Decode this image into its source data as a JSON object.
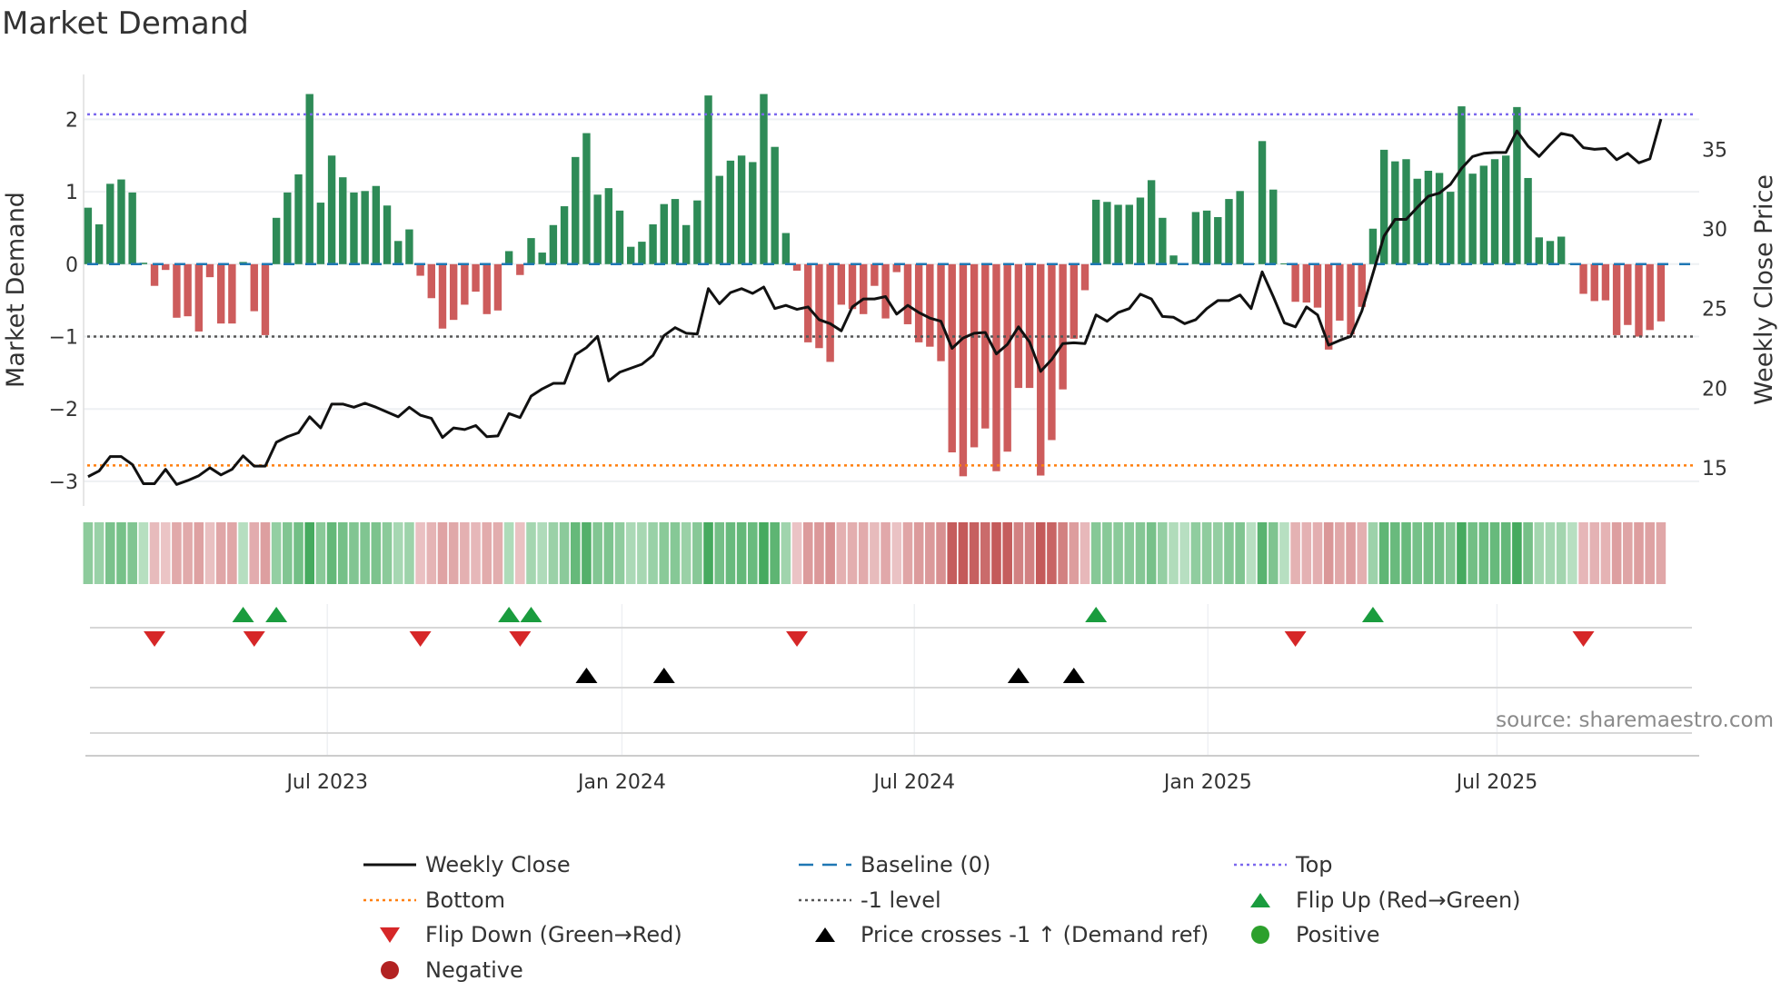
{
  "title": "Market Demand",
  "source": "source: sharemaestro.com",
  "chart_data": {
    "type": "bar",
    "title": "Market Demand",
    "ylabel": "Market Demand",
    "y2label": "Weekly Close Price",
    "ylim": [
      -3.34,
      2.62
    ],
    "y2lim": [
      12.6,
      39.7
    ],
    "y_ticks": [
      "2",
      "1",
      "0",
      "−1",
      "−2",
      "−3"
    ],
    "y_tick_values": [
      2,
      1,
      0,
      -1,
      -2,
      -3
    ],
    "y2_ticks": [
      "35",
      "30",
      "25",
      "20",
      "15"
    ],
    "y2_tick_values": [
      35,
      30,
      25,
      20,
      15
    ],
    "x_unit": "week index",
    "x_ticks": [
      {
        "label": "Jul 2023",
        "week": 21.6
      },
      {
        "label": "Jan 2024",
        "week": 48.2
      },
      {
        "label": "Jul 2024",
        "week": 74.6
      },
      {
        "label": "Jan 2025",
        "week": 101.1
      },
      {
        "label": "Jul 2025",
        "week": 127.2
      }
    ],
    "levels": {
      "top": 2.07,
      "bottom": -2.78,
      "baseline": 0,
      "minus_one": -1
    },
    "demand": [
      0.78,
      0.55,
      1.11,
      1.17,
      0.99,
      0.02,
      -0.3,
      -0.08,
      -0.74,
      -0.72,
      -0.93,
      -0.18,
      -0.82,
      -0.82,
      0.03,
      -0.65,
      -0.98,
      0.64,
      0.99,
      1.24,
      2.35,
      0.85,
      1.5,
      1.2,
      0.99,
      1.01,
      1.08,
      0.81,
      0.32,
      0.48,
      -0.16,
      -0.47,
      -0.89,
      -0.77,
      -0.56,
      -0.38,
      -0.69,
      -0.64,
      0.18,
      -0.15,
      0.36,
      0.16,
      0.54,
      0.8,
      1.48,
      1.81,
      0.96,
      1.05,
      0.74,
      0.24,
      0.31,
      0.55,
      0.83,
      0.9,
      0.54,
      0.88,
      2.33,
      1.22,
      1.43,
      1.5,
      1.41,
      2.35,
      1.62,
      0.43,
      -0.09,
      -1.08,
      -1.16,
      -1.35,
      -0.56,
      -0.62,
      -0.69,
      -0.3,
      -0.75,
      -0.11,
      -0.83,
      -1.08,
      -1.14,
      -1.34,
      -2.6,
      -2.93,
      -2.53,
      -2.27,
      -2.86,
      -2.59,
      -1.71,
      -1.71,
      -2.92,
      -2.43,
      -1.73,
      -1.03,
      -0.36,
      0.89,
      0.86,
      0.82,
      0.82,
      0.92,
      1.16,
      0.64,
      0.12,
      0.01,
      0.72,
      0.74,
      0.65,
      0.9,
      1.01,
      0.01,
      1.7,
      1.03,
      0.01,
      -0.52,
      -0.53,
      -0.6,
      -1.18,
      -0.78,
      -0.97,
      -0.59,
      0.49,
      1.58,
      1.42,
      1.45,
      1.18,
      1.29,
      1.26,
      1.0,
      2.18,
      1.25,
      1.36,
      1.45,
      1.5,
      2.17,
      1.19,
      0.37,
      0.32,
      0.38,
      0.01,
      -0.41,
      -0.51,
      -0.5,
      -0.98,
      -0.84,
      -1.0,
      -0.91,
      -0.79
    ],
    "weekly_close": [
      14.44,
      14.8,
      15.7,
      15.7,
      15.2,
      14.0,
      14.0,
      14.9,
      13.95,
      14.2,
      14.5,
      15.0,
      14.55,
      14.9,
      15.75,
      15.1,
      15.1,
      16.6,
      16.95,
      17.2,
      18.2,
      17.5,
      19.0,
      19.0,
      18.8,
      19.05,
      18.8,
      18.5,
      18.2,
      18.8,
      18.3,
      18.1,
      16.9,
      17.5,
      17.4,
      17.65,
      16.95,
      17.0,
      18.4,
      18.15,
      19.5,
      19.95,
      20.3,
      20.3,
      22.1,
      22.55,
      23.25,
      20.45,
      21.0,
      21.25,
      21.5,
      22.05,
      23.3,
      23.8,
      23.45,
      23.4,
      26.25,
      25.3,
      26.0,
      26.25,
      25.95,
      26.35,
      25.0,
      25.2,
      24.95,
      25.1,
      24.3,
      24.05,
      23.6,
      25.1,
      25.6,
      25.6,
      25.75,
      24.65,
      25.2,
      24.75,
      24.4,
      24.2,
      22.5,
      23.15,
      23.45,
      23.5,
      22.15,
      22.75,
      23.85,
      22.9,
      21.05,
      21.8,
      22.8,
      22.85,
      22.8,
      24.6,
      24.2,
      24.75,
      25.0,
      25.9,
      25.6,
      24.5,
      24.45,
      24.05,
      24.3,
      25.0,
      25.5,
      25.5,
      25.85,
      25.0,
      27.3,
      25.75,
      24.1,
      23.85,
      25.1,
      24.6,
      22.7,
      23.0,
      23.25,
      24.85,
      27.2,
      29.55,
      30.6,
      30.6,
      31.35,
      32.05,
      32.25,
      32.8,
      33.8,
      34.55,
      34.75,
      34.8,
      34.8,
      36.15,
      35.2,
      34.55,
      35.3,
      36.0,
      35.85,
      35.1,
      35.0,
      35.05,
      34.35,
      34.75,
      34.15,
      34.4,
      36.9
    ],
    "flip_up_weeks": [
      14,
      17,
      38,
      40,
      91,
      116
    ],
    "flip_down_weeks": [
      6,
      15,
      30,
      39,
      64,
      109,
      135
    ],
    "price_cross_weeks": [
      45,
      52,
      84,
      89
    ],
    "colors": {
      "positive_bar": "#2e8b57",
      "negative_bar": "#cd5c5c",
      "top": "#7b68ee",
      "bottom": "#ff7f0e",
      "baseline": "#1f77b4",
      "minus_one": "#555555",
      "flip_up": "#1a9c3e",
      "flip_down": "#d62728",
      "price_cross": "#000000",
      "positive": "#2ca02c",
      "negative": "#b22222"
    },
    "legend": [
      {
        "key": "weekly_close",
        "label": "Weekly Close"
      },
      {
        "key": "baseline",
        "label": "Baseline (0)"
      },
      {
        "key": "top",
        "label": "Top"
      },
      {
        "key": "bottom",
        "label": "Bottom"
      },
      {
        "key": "minus_one",
        "label": "-1 level"
      },
      {
        "key": "flip_up",
        "label": "Flip Up (Red→Green)"
      },
      {
        "key": "flip_down",
        "label": "Flip Down (Green→Red)"
      },
      {
        "key": "price_cross",
        "label": "Price crosses -1 ↑ (Demand ref)"
      },
      {
        "key": "positive",
        "label": "Positive"
      },
      {
        "key": "negative",
        "label": "Negative"
      }
    ],
    "legend_position": "bottom"
  }
}
